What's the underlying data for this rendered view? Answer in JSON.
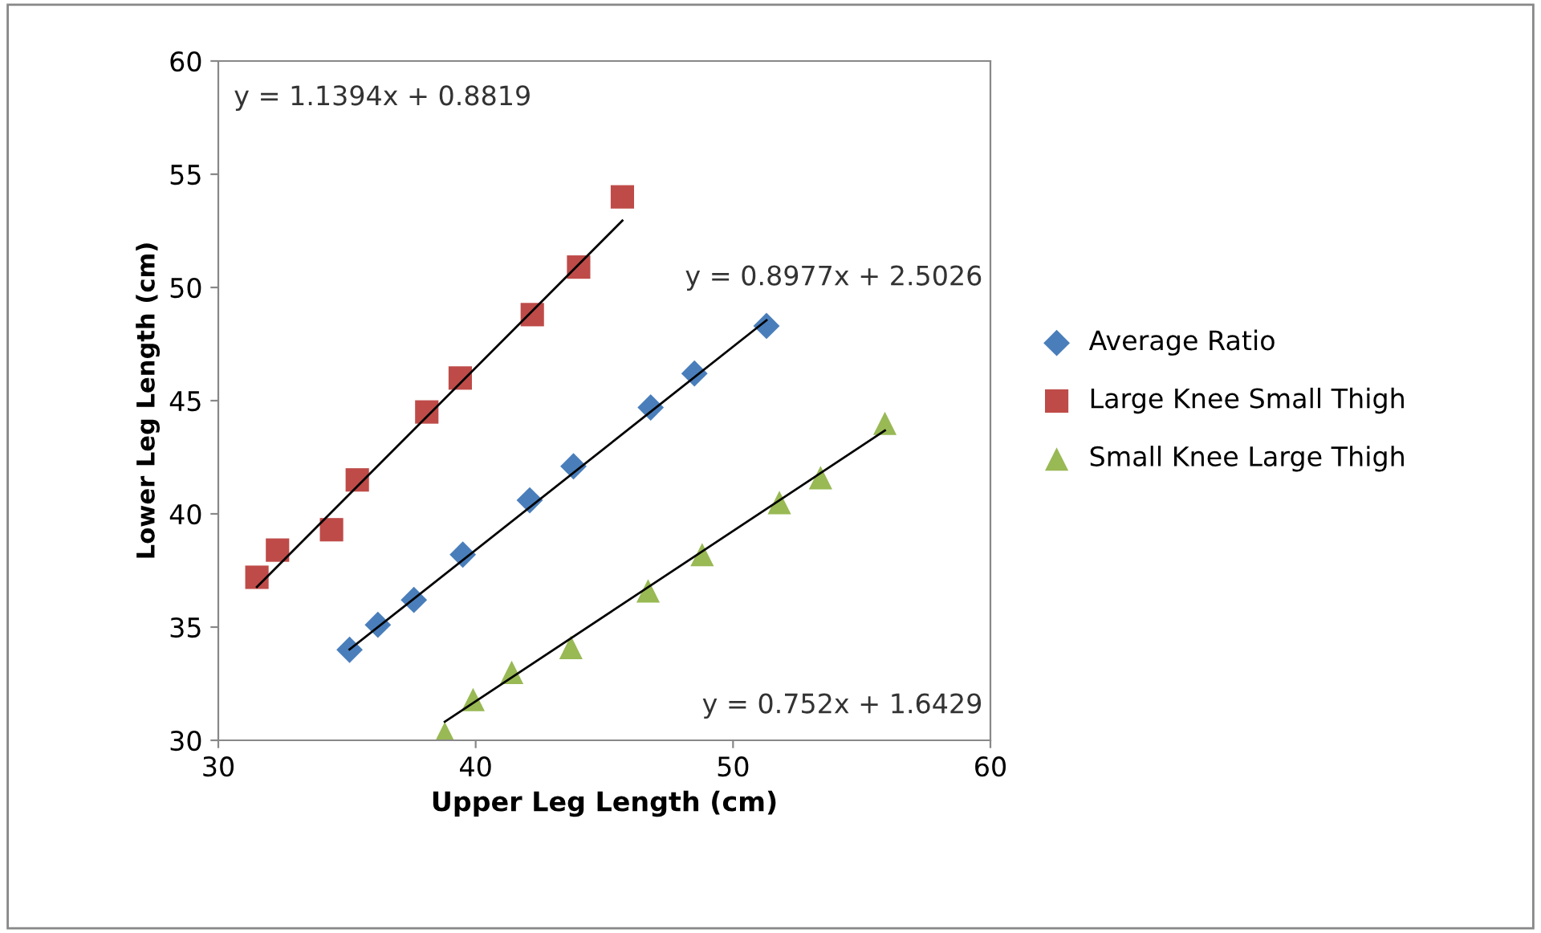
{
  "chart_data": {
    "type": "scatter",
    "xlabel": "Upper Leg Length (cm)",
    "ylabel": "Lower Leg Length (cm)",
    "xlim": [
      30,
      60
    ],
    "xticks": [
      30,
      40,
      50,
      60
    ],
    "ylim": [
      30,
      60
    ],
    "yticks": [
      30,
      35,
      40,
      45,
      50,
      55,
      60
    ],
    "grid": false,
    "legend": "right",
    "series": [
      {
        "name": "Average Ratio",
        "color": "#4a7ebb",
        "marker": "diamond",
        "x": [
          35.1,
          36.2,
          37.6,
          39.5,
          42.1,
          43.8,
          46.8,
          48.5,
          51.3
        ],
        "values": [
          34.0,
          35.1,
          36.2,
          38.2,
          40.6,
          42.1,
          44.7,
          46.2,
          48.3
        ]
      },
      {
        "name": "Large Knee Small Thigh",
        "color": "#be4b48",
        "marker": "square",
        "x": [
          31.5,
          32.3,
          34.4,
          35.4,
          38.1,
          39.4,
          42.2,
          44.0,
          45.7
        ],
        "values": [
          37.2,
          38.4,
          39.3,
          41.5,
          44.5,
          46.0,
          48.8,
          50.9,
          54.0
        ]
      },
      {
        "name": "Small Knee Large Thigh",
        "color": "#98b954",
        "marker": "triangle",
        "x": [
          38.8,
          39.9,
          41.4,
          43.7,
          46.7,
          48.8,
          51.8,
          53.4,
          55.9
        ],
        "values": [
          30.3,
          31.8,
          33.0,
          34.1,
          36.6,
          38.2,
          40.5,
          41.6,
          44.0
        ]
      },
      {
        "type": "line",
        "color": "#000000",
        "x": [
          35.1,
          51.3
        ],
        "values": [
          34.01,
          48.55
        ]
      },
      {
        "type": "line",
        "color": "#000000",
        "x": [
          31.5,
          45.7
        ],
        "values": [
          36.77,
          52.95
        ]
      },
      {
        "type": "line",
        "color": "#000000",
        "x": [
          38.8,
          55.9
        ],
        "values": [
          30.82,
          43.68
        ]
      }
    ],
    "annotations": [
      "y = 0.8977x + 2.5026",
      "y = 1.1394x + 0.8819",
      "y = 0.752x + 1.6429"
    ]
  }
}
